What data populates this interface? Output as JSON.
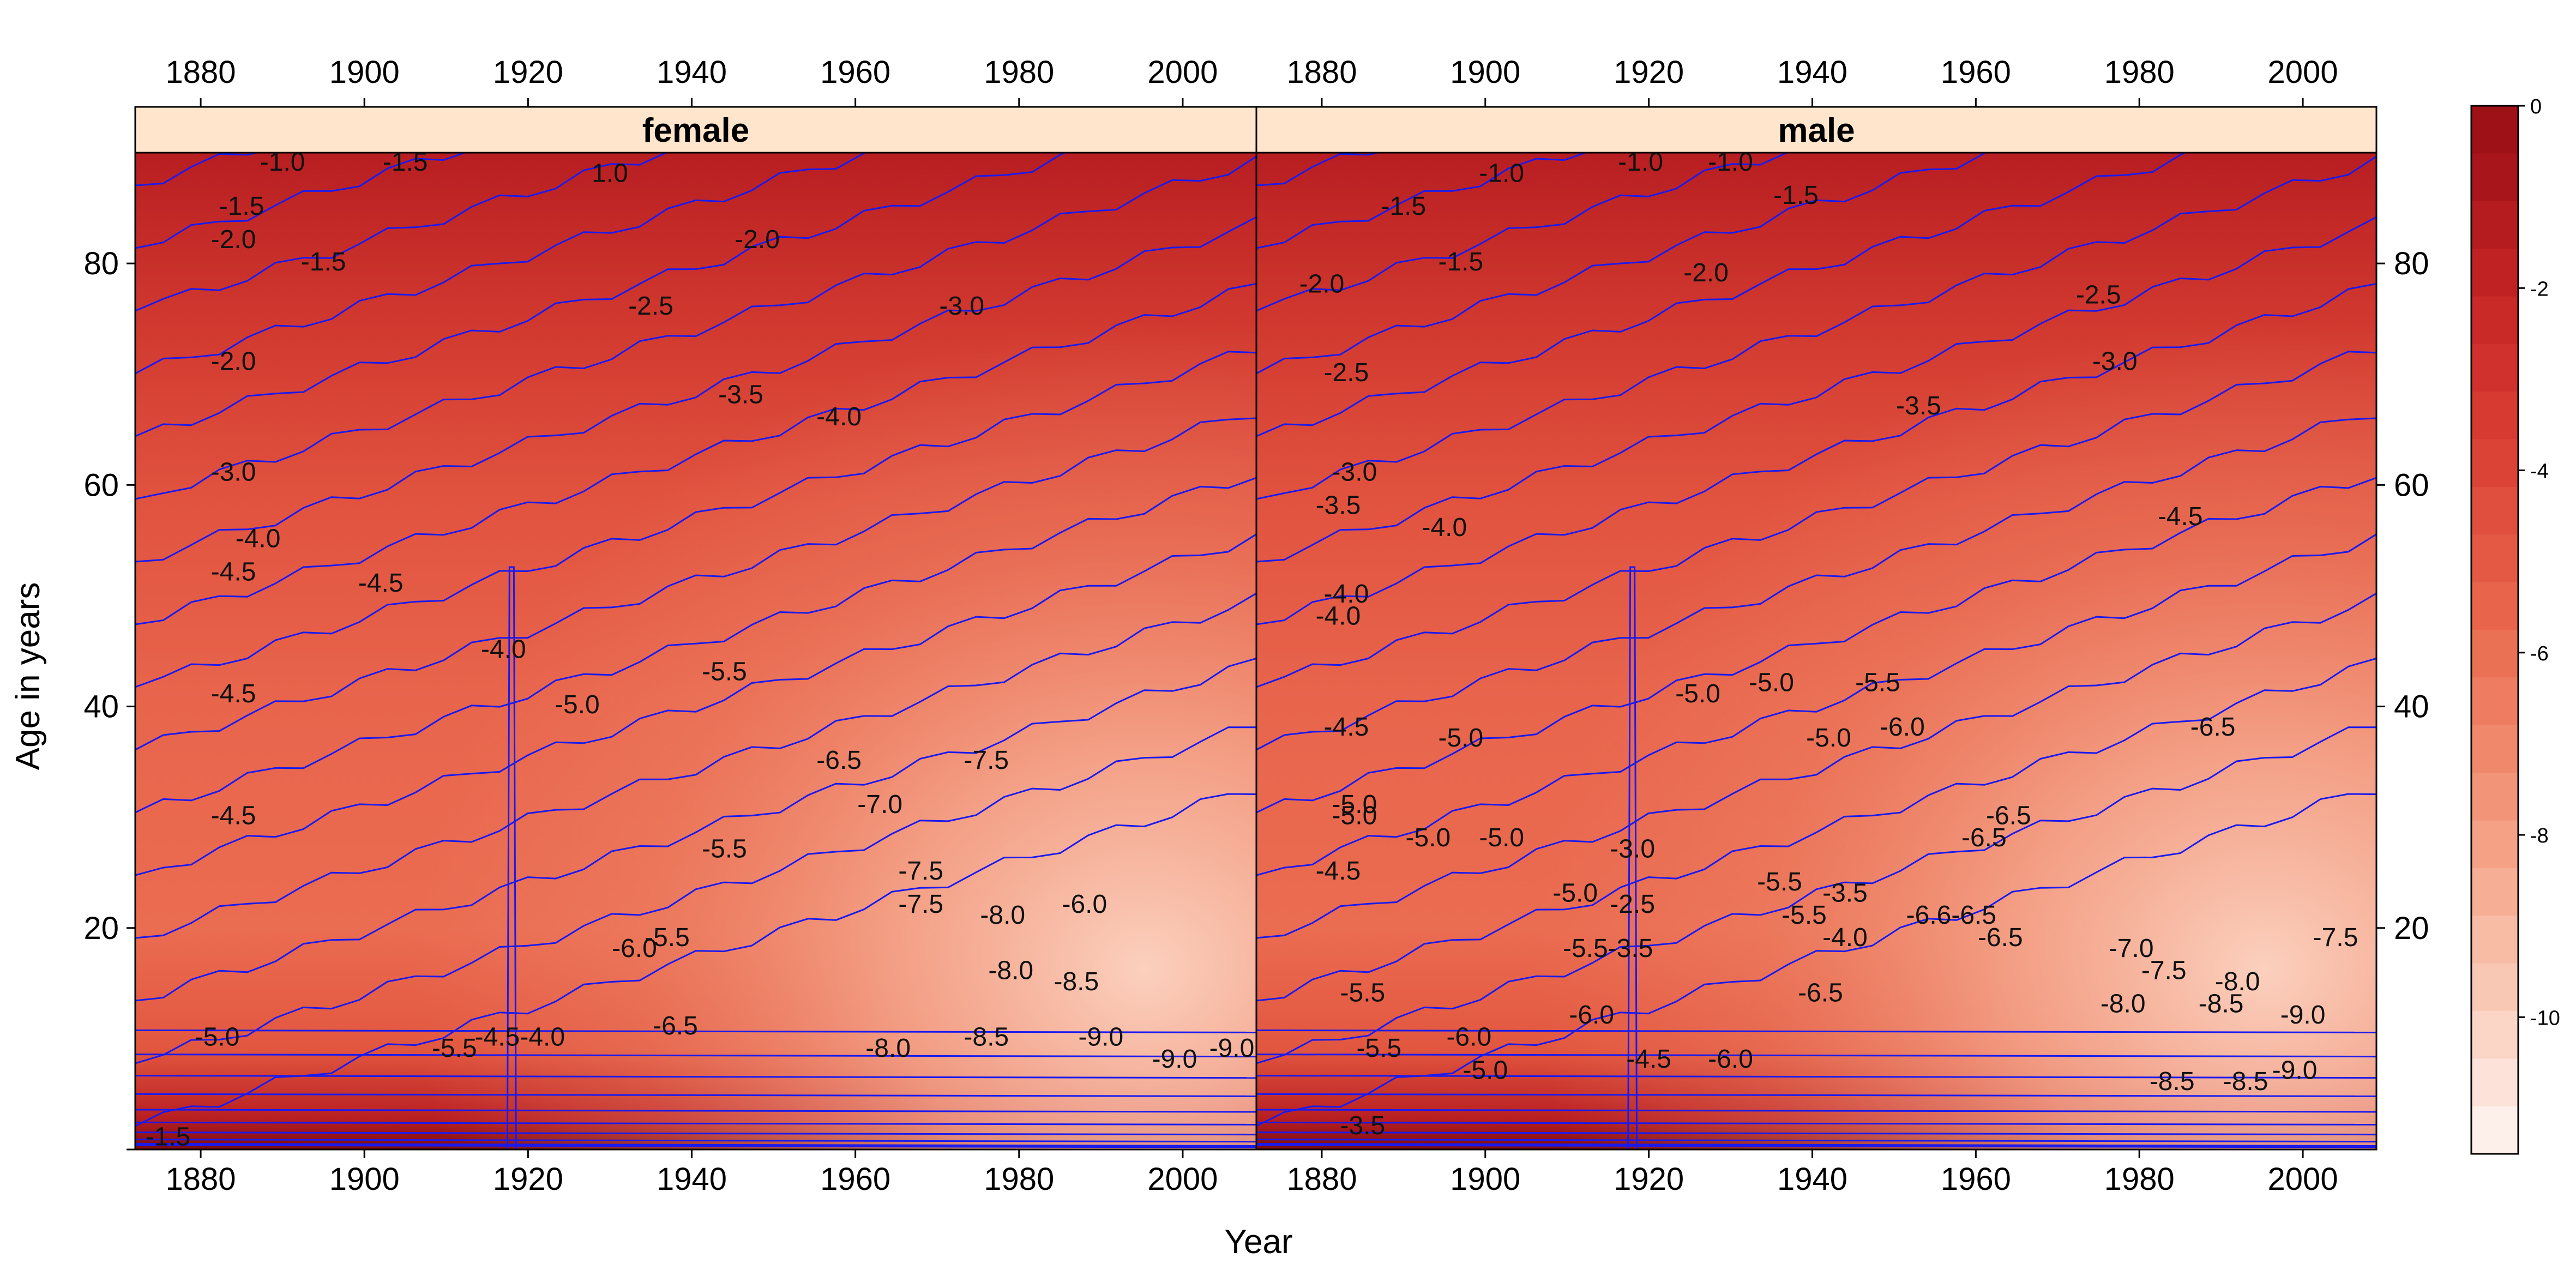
{
  "chart_data": {
    "type": "heatmap",
    "subtype": "filled-contour (levelplot)",
    "xlabel": "Year",
    "ylabel": "Age in years",
    "xlim": [
      1872,
      2009
    ],
    "ylim": [
      0,
      90
    ],
    "x_ticks": [
      1880,
      1900,
      1920,
      1940,
      1960,
      1980,
      2000
    ],
    "y_ticks": [
      20,
      40,
      60,
      80
    ],
    "panels": [
      {
        "name": "female",
        "contour_labels": [
          {
            "label": "-1.0",
            "x": 1890,
            "y": 89
          },
          {
            "label": "-1.5",
            "x": 1905,
            "y": 89
          },
          {
            "label": "1.0",
            "x": 1930,
            "y": 88
          },
          {
            "label": "-1.5",
            "x": 1885,
            "y": 85
          },
          {
            "label": "-2.0",
            "x": 1884,
            "y": 82
          },
          {
            "label": "-1.5",
            "x": 1895,
            "y": 80
          },
          {
            "label": "-2.0",
            "x": 1948,
            "y": 82
          },
          {
            "label": "-2.5",
            "x": 1935,
            "y": 76
          },
          {
            "label": "-3.0",
            "x": 1973,
            "y": 76
          },
          {
            "label": "-2.0",
            "x": 1884,
            "y": 71
          },
          {
            "label": "-3.5",
            "x": 1946,
            "y": 68
          },
          {
            "label": "-4.0",
            "x": 1958,
            "y": 66
          },
          {
            "label": "-3.0",
            "x": 1884,
            "y": 61
          },
          {
            "label": "-4.0",
            "x": 1887,
            "y": 55
          },
          {
            "label": "-4.5",
            "x": 1884,
            "y": 52
          },
          {
            "label": "-4.5",
            "x": 1902,
            "y": 51
          },
          {
            "label": "-4.0",
            "x": 1917,
            "y": 45
          },
          {
            "label": "-4.5",
            "x": 1884,
            "y": 41
          },
          {
            "label": "-5.0",
            "x": 1926,
            "y": 40
          },
          {
            "label": "-5.5",
            "x": 1944,
            "y": 43
          },
          {
            "label": "-6.5",
            "x": 1958,
            "y": 35
          },
          {
            "label": "-7.5",
            "x": 1976,
            "y": 35
          },
          {
            "label": "-7.0",
            "x": 1963,
            "y": 31
          },
          {
            "label": "-4.5",
            "x": 1884,
            "y": 30
          },
          {
            "label": "-5.5",
            "x": 1944,
            "y": 27
          },
          {
            "label": "-7.5",
            "x": 1968,
            "y": 25
          },
          {
            "label": "-7.5",
            "x": 1968,
            "y": 22
          },
          {
            "label": "-8.0",
            "x": 1978,
            "y": 21
          },
          {
            "label": "-6.0",
            "x": 1988,
            "y": 22
          },
          {
            "label": "-6.0",
            "x": 1933,
            "y": 18
          },
          {
            "label": "-5.5",
            "x": 1937,
            "y": 19
          },
          {
            "label": "-8.0",
            "x": 1979,
            "y": 16
          },
          {
            "label": "-8.5",
            "x": 1987,
            "y": 15
          },
          {
            "label": "-5.0",
            "x": 1882,
            "y": 10
          },
          {
            "label": "-5.5",
            "x": 1911,
            "y": 9
          },
          {
            "label": "-6.5",
            "x": 1938,
            "y": 11
          },
          {
            "label": "-4.5-4.0",
            "x": 1919,
            "y": 10
          },
          {
            "label": "-8.0",
            "x": 1964,
            "y": 9
          },
          {
            "label": "-8.5",
            "x": 1976,
            "y": 10
          },
          {
            "label": "-9.0",
            "x": 1990,
            "y": 10
          },
          {
            "label": "-9.0",
            "x": 1999,
            "y": 8
          },
          {
            "label": "-9.0",
            "x": 2006,
            "y": 9
          },
          {
            "label": "-1.5",
            "x": 1876,
            "y": 1
          }
        ]
      },
      {
        "name": "male",
        "contour_labels": [
          {
            "label": "-1.0",
            "x": 1902,
            "y": 88
          },
          {
            "label": "-1.0",
            "x": 1919,
            "y": 89
          },
          {
            "label": "-1.0",
            "x": 1930,
            "y": 89
          },
          {
            "label": "-1.5",
            "x": 1938,
            "y": 86
          },
          {
            "label": "-1.5",
            "x": 1890,
            "y": 85
          },
          {
            "label": "-1.5",
            "x": 1897,
            "y": 80
          },
          {
            "label": "-2.0",
            "x": 1927,
            "y": 79
          },
          {
            "label": "-2.0",
            "x": 1880,
            "y": 78
          },
          {
            "label": "-2.5",
            "x": 1975,
            "y": 77
          },
          {
            "label": "-2.5",
            "x": 1883,
            "y": 70
          },
          {
            "label": "-3.0",
            "x": 1977,
            "y": 71
          },
          {
            "label": "-3.5",
            "x": 1953,
            "y": 67
          },
          {
            "label": "-3.0",
            "x": 1884,
            "y": 61
          },
          {
            "label": "-3.5",
            "x": 1882,
            "y": 58
          },
          {
            "label": "-4.5",
            "x": 1985,
            "y": 57
          },
          {
            "label": "-4.0",
            "x": 1895,
            "y": 56
          },
          {
            "label": "-4.0",
            "x": 1883,
            "y": 50
          },
          {
            "label": "-4.0",
            "x": 1882,
            "y": 48
          },
          {
            "label": "-4.5",
            "x": 1883,
            "y": 38
          },
          {
            "label": "-5.0",
            "x": 1926,
            "y": 41
          },
          {
            "label": "-5.0",
            "x": 1935,
            "y": 42
          },
          {
            "label": "-5.5",
            "x": 1948,
            "y": 42
          },
          {
            "label": "-5.0",
            "x": 1897,
            "y": 37
          },
          {
            "label": "-5.0",
            "x": 1942,
            "y": 37
          },
          {
            "label": "-6.0",
            "x": 1951,
            "y": 38
          },
          {
            "label": "-6.5",
            "x": 1989,
            "y": 38
          },
          {
            "label": "-5.0",
            "x": 1884,
            "y": 31
          },
          {
            "label": "-5.0",
            "x": 1884,
            "y": 30
          },
          {
            "label": "-5.0",
            "x": 1893,
            "y": 28
          },
          {
            "label": "-5.0",
            "x": 1902,
            "y": 28
          },
          {
            "label": "-6.5",
            "x": 1964,
            "y": 30
          },
          {
            "label": "-6.5",
            "x": 1961,
            "y": 28
          },
          {
            "label": "-4.5",
            "x": 1882,
            "y": 25
          },
          {
            "label": "-3.0",
            "x": 1918,
            "y": 27
          },
          {
            "label": "-5.5",
            "x": 1936,
            "y": 24
          },
          {
            "label": "-3.5",
            "x": 1944,
            "y": 23
          },
          {
            "label": "-5.0",
            "x": 1911,
            "y": 23
          },
          {
            "label": "-2.5",
            "x": 1918,
            "y": 22
          },
          {
            "label": "-5.5",
            "x": 1939,
            "y": 21
          },
          {
            "label": "-6.6-6.5",
            "x": 1957,
            "y": 21
          },
          {
            "label": "-5.5-3.5",
            "x": 1915,
            "y": 18
          },
          {
            "label": "-4.0",
            "x": 1944,
            "y": 19
          },
          {
            "label": "-6.5",
            "x": 1963,
            "y": 19
          },
          {
            "label": "-7.0",
            "x": 1979,
            "y": 18
          },
          {
            "label": "-7.5",
            "x": 1983,
            "y": 16
          },
          {
            "label": "-8.0",
            "x": 1992,
            "y": 15
          },
          {
            "label": "-7.5",
            "x": 2004,
            "y": 19
          },
          {
            "label": "-5.5",
            "x": 1885,
            "y": 14
          },
          {
            "label": "-6.5",
            "x": 1941,
            "y": 14
          },
          {
            "label": "-8.0",
            "x": 1978,
            "y": 13
          },
          {
            "label": "-8.5",
            "x": 1990,
            "y": 13
          },
          {
            "label": "-6.0",
            "x": 1913,
            "y": 12
          },
          {
            "label": "-9.0",
            "x": 2000,
            "y": 12
          },
          {
            "label": "-6.0",
            "x": 1898,
            "y": 10
          },
          {
            "label": "-5.5",
            "x": 1887,
            "y": 9
          },
          {
            "label": "-4.5",
            "x": 1920,
            "y": 8
          },
          {
            "label": "-6.0",
            "x": 1930,
            "y": 8
          },
          {
            "label": "-5.0",
            "x": 1900,
            "y": 7
          },
          {
            "label": "-8.5",
            "x": 1984,
            "y": 6
          },
          {
            "label": "-8.5",
            "x": 1993,
            "y": 6
          },
          {
            "label": "-9.0",
            "x": 1999,
            "y": 7
          },
          {
            "label": "-3.5",
            "x": 1885,
            "y": 2
          }
        ]
      }
    ],
    "colorkey": {
      "ticks": [
        0,
        -2,
        -4,
        -6,
        -8,
        -10
      ],
      "range": [
        -11.5,
        0
      ],
      "palette": [
        "#9e1116",
        "#a8151a",
        "#b51c20",
        "#c02223",
        "#c92927",
        "#d0312c",
        "#d63a31",
        "#dc4337",
        "#e04e3d",
        "#e45944",
        "#e8654c",
        "#eb7155",
        "#ee7c60",
        "#f0886b",
        "#f29478",
        "#f4a186",
        "#f6ae95",
        "#f8bba4",
        "#f9c8b5",
        "#fbd5c6",
        "#fce2d8",
        "#fdefe9"
      ]
    },
    "strip_background": "#ffe5cc",
    "contour_line_color": "#1a1aee"
  }
}
